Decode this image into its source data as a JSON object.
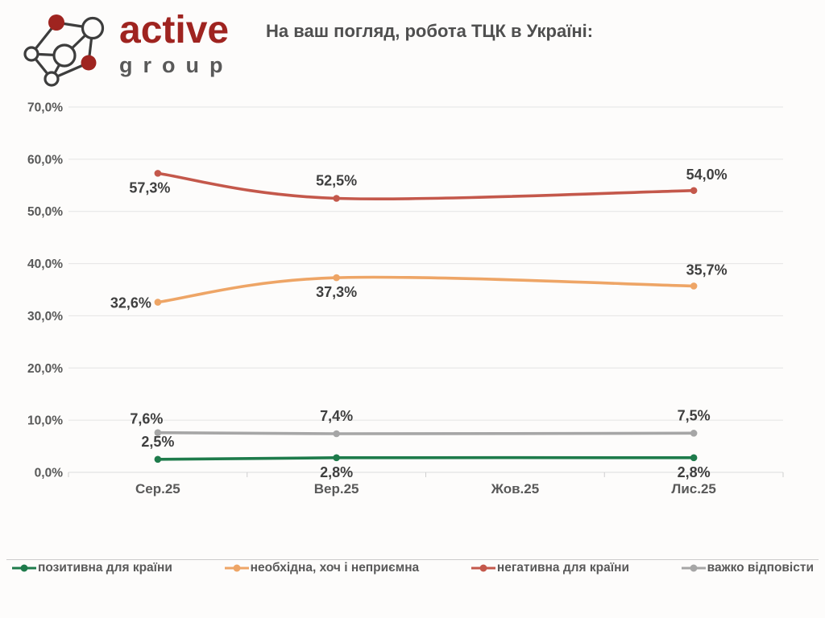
{
  "header": {
    "brand_name": "active",
    "brand_sub": "group",
    "title": "На ваш погляд, робота ТЦК в Україні:"
  },
  "chart_data": {
    "type": "line",
    "title": "На ваш погляд, робота ТЦК в Україні:",
    "categories": [
      "Сер.25",
      "Вер.25",
      "Жов.25",
      "Лис.25"
    ],
    "ylim": [
      0,
      70
    ],
    "ytick_step": 10,
    "ytick_format": "percent-comma-decimal",
    "grid": true,
    "legend_position": "bottom",
    "note": "No data point at Жов.25 — smoothed lines pass through that month",
    "series": [
      {
        "name": "позитивна для країни",
        "color": "#1e7b4b",
        "values": [
          2.5,
          2.8,
          null,
          2.8
        ],
        "labels": [
          "2,5%",
          "2,8%",
          null,
          "2,8%"
        ],
        "label_pos": [
          "above",
          "below",
          null,
          "below"
        ]
      },
      {
        "name": "необхідна, хоч і неприємна",
        "color": "#eea566",
        "values": [
          32.6,
          37.3,
          null,
          35.7
        ],
        "labels": [
          "32,6%",
          "37,3%",
          null,
          "35,7%"
        ],
        "label_pos": [
          "left",
          "below",
          null,
          "above-right"
        ]
      },
      {
        "name": "негативна для країни",
        "color": "#c4584b",
        "values": [
          57.3,
          52.5,
          null,
          54.0
        ],
        "labels": [
          "57,3%",
          "52,5%",
          null,
          "54,0%"
        ],
        "label_pos": [
          "below-left",
          "above",
          null,
          "above-right"
        ]
      },
      {
        "name": "важко відповісти",
        "color": "#a6a6a6",
        "values": [
          7.6,
          7.4,
          null,
          7.5
        ],
        "labels": [
          "7,6%",
          "7,4%",
          null,
          "7,5%"
        ],
        "label_pos": [
          "above-left",
          "above",
          null,
          "above"
        ]
      }
    ]
  }
}
